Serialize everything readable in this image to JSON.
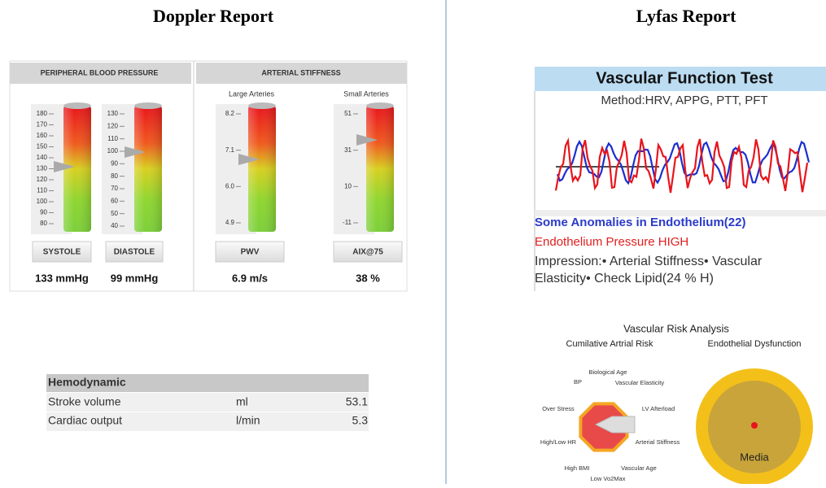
{
  "doppler": {
    "title": "Doppler Report",
    "sections": [
      "PERIPHERAL BLOOD PRESSURE",
      "ARTERIAL STIFFNESS"
    ],
    "subtitles": [
      "Large Arteries",
      "Small Arteries"
    ],
    "gauges": [
      {
        "ticks": [
          "180",
          "170",
          "160",
          "150",
          "140",
          "130",
          "120",
          "110",
          "100",
          "90",
          "80"
        ],
        "label": "SYSTOLE",
        "reading": "133 mmHg"
      },
      {
        "ticks": [
          "130",
          "120",
          "110",
          "100",
          "90",
          "80",
          "70",
          "60",
          "50",
          "40"
        ],
        "label": "DIASTOLE",
        "reading": "99 mmHg"
      },
      {
        "ticks": [
          "8.2",
          "7.1",
          "6.0",
          "4.9"
        ],
        "label": "PWV",
        "reading": "6.9 m/s"
      },
      {
        "ticks": [
          "51",
          "31",
          "10",
          "-11"
        ],
        "label": "AIX@75",
        "reading": "38 %"
      }
    ],
    "hemodynamic": {
      "header": "Hemodynamic",
      "rows": [
        [
          "Stroke volume",
          "ml",
          53.1
        ],
        [
          "Cardiac output",
          "l/min",
          5.3
        ]
      ]
    }
  },
  "lyfas": {
    "title": "Lyfas Report",
    "test_title": "Vascular Function Test",
    "method": "Method:HRV,  APPG, PTT, PFT",
    "anomalies": "Some Anomalies in Endothelium(22)",
    "pressure": "Endothelium Pressure HIGH",
    "impression": [
      "Impression:• Arterial Stiffness• Vascular",
      "Elasticity• Check Lipid(24 % H)"
    ],
    "risk": {
      "title": "Vascular Risk Analysis",
      "left_title": "Cumilative Artrial Risk",
      "right_title": "Endothelial Dysfunction",
      "radar_labels": [
        "Biological Age",
        "BP",
        "Vascular Elasticity",
        "Over Stress",
        "LV Afterload",
        "High/Low HR",
        "Arterial Stiffness",
        "High BMI",
        "Vascular Age",
        "Low Vo2Max"
      ],
      "center_label": "Media"
    }
  }
}
